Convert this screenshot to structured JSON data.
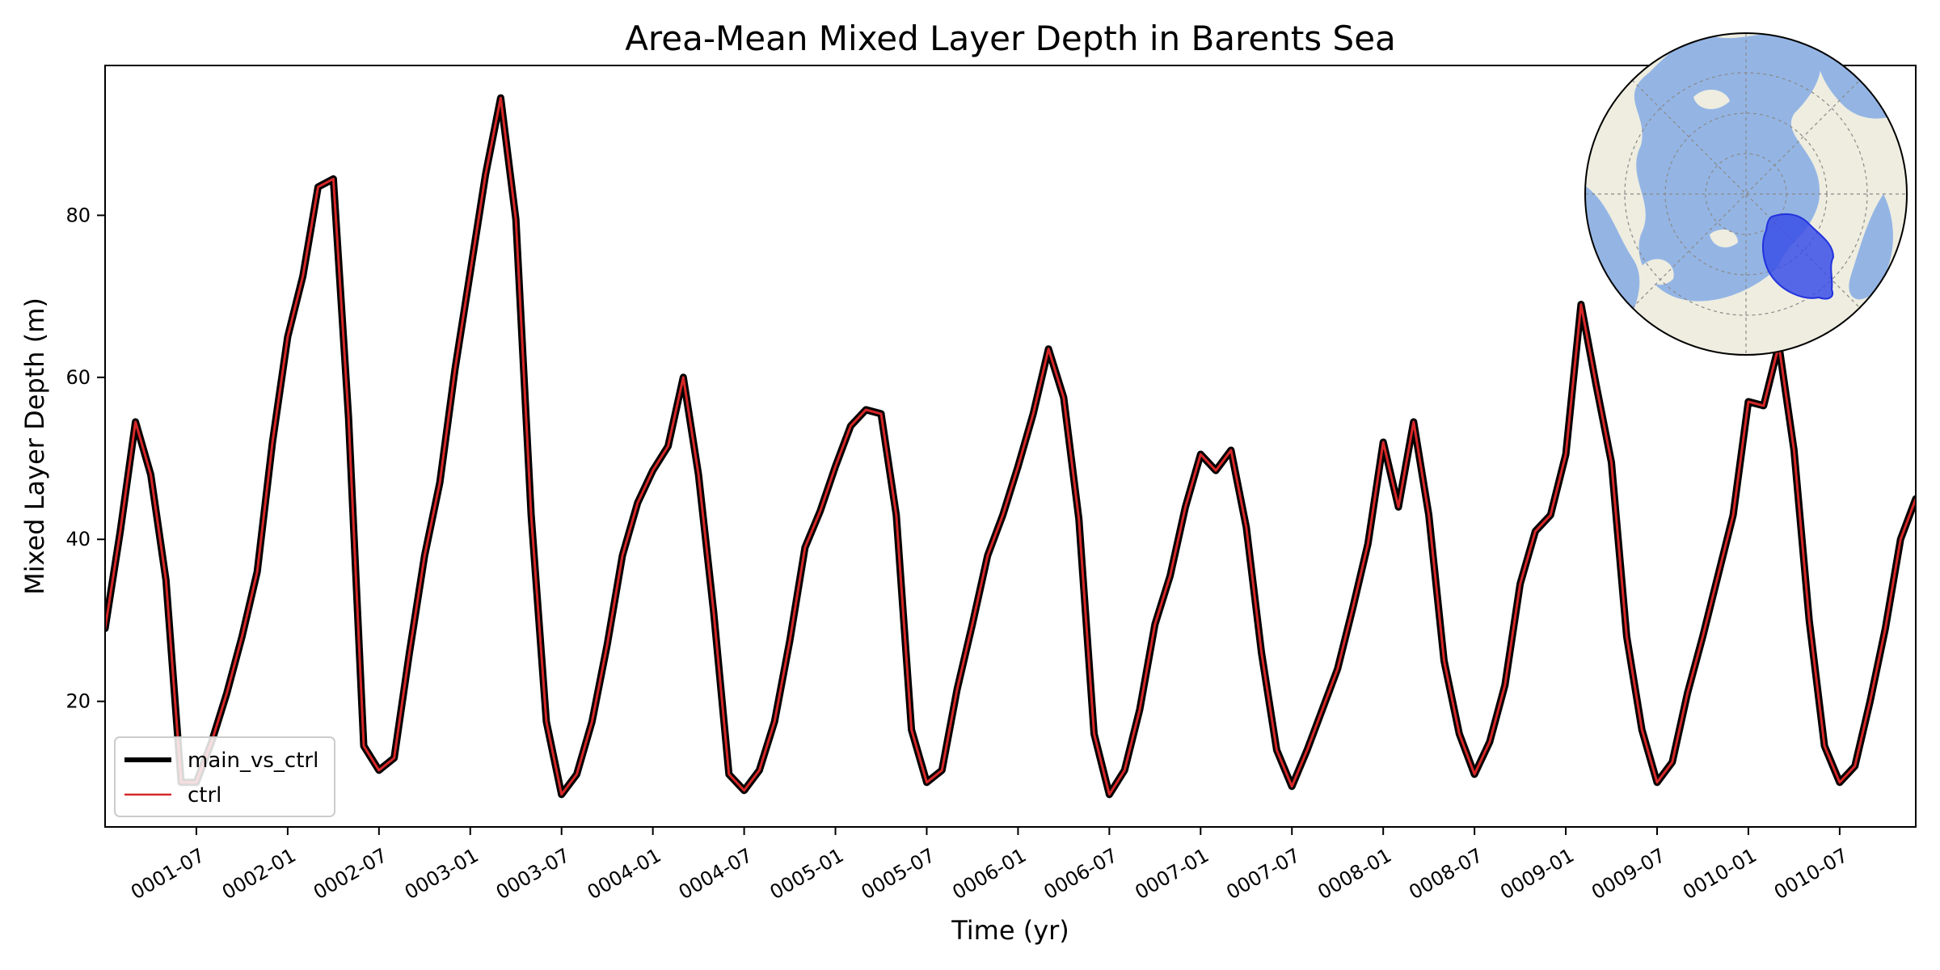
{
  "chart_data": {
    "type": "line",
    "title": "Area-Mean Mixed Layer Depth in Barents Sea",
    "xlabel": "Time (yr)",
    "ylabel": "Mixed Layer Depth (m)",
    "ylim": [
      4.5,
      98.5
    ],
    "yticks": [
      20,
      40,
      60,
      80
    ],
    "x_start_month_index": 0,
    "xticks": [
      {
        "label": "0001-07",
        "month_index": 6
      },
      {
        "label": "0002-01",
        "month_index": 12
      },
      {
        "label": "0002-07",
        "month_index": 18
      },
      {
        "label": "0003-01",
        "month_index": 24
      },
      {
        "label": "0003-07",
        "month_index": 30
      },
      {
        "label": "0004-01",
        "month_index": 36
      },
      {
        "label": "0004-07",
        "month_index": 42
      },
      {
        "label": "0005-01",
        "month_index": 48
      },
      {
        "label": "0005-07",
        "month_index": 54
      },
      {
        "label": "0006-01",
        "month_index": 60
      },
      {
        "label": "0006-07",
        "month_index": 66
      },
      {
        "label": "0007-01",
        "month_index": 72
      },
      {
        "label": "0007-07",
        "month_index": 78
      },
      {
        "label": "0008-01",
        "month_index": 84
      },
      {
        "label": "0008-07",
        "month_index": 90
      },
      {
        "label": "0009-01",
        "month_index": 96
      },
      {
        "label": "0009-07",
        "month_index": 102
      },
      {
        "label": "0010-01",
        "month_index": 108
      },
      {
        "label": "0010-07",
        "month_index": 114
      }
    ],
    "xlim_month_index": [
      0,
      119
    ],
    "series": [
      {
        "name": "main_vs_ctrl",
        "color": "#000000",
        "values": [
          29,
          41,
          54.5,
          48,
          35,
          10,
          10,
          15,
          21,
          28,
          36,
          52,
          65,
          72.5,
          83.5,
          84.5,
          55,
          14.5,
          11.5,
          13,
          26,
          38,
          47,
          61,
          73,
          85,
          94.5,
          79.5,
          43,
          17.5,
          8.5,
          11,
          17.5,
          27,
          38,
          44.5,
          48.5,
          51.5,
          60,
          48,
          31,
          11,
          9,
          11.5,
          17.5,
          27.5,
          39,
          43.5,
          49,
          54,
          56,
          55.5,
          43,
          16.5,
          10,
          11.5,
          21.5,
          29.5,
          38,
          43,
          49,
          55.5,
          63.5,
          57.5,
          42.5,
          16,
          8.5,
          11.5,
          19,
          29.5,
          35.5,
          44,
          50.5,
          48.5,
          51,
          41.5,
          26,
          14,
          9.5,
          14,
          19,
          24,
          31.5,
          39.5,
          52,
          44,
          54.5,
          43,
          25,
          16,
          11,
          15,
          22,
          34.5,
          41,
          43,
          50.5,
          69,
          59,
          49.5,
          28,
          16.5,
          10,
          12.5,
          21,
          28,
          35.5,
          43,
          57,
          56.5,
          64,
          51,
          30,
          14.5,
          10,
          12,
          20,
          29,
          40,
          45
        ]
      },
      {
        "name": "ctrl",
        "color": "#d62728",
        "values": [
          29,
          41,
          54.5,
          48,
          35,
          10,
          10,
          15,
          21,
          28,
          36,
          52,
          65,
          72.5,
          83.5,
          84.5,
          55,
          14.5,
          11.5,
          13,
          26,
          38,
          47,
          61,
          73,
          85,
          94.5,
          79.5,
          43,
          17.5,
          8.5,
          11,
          17.5,
          27,
          38,
          44.5,
          48.5,
          51.5,
          60,
          48,
          31,
          11,
          9,
          11.5,
          17.5,
          27.5,
          39,
          43.5,
          49,
          54,
          56,
          55.5,
          43,
          16.5,
          10,
          11.5,
          21.5,
          29.5,
          38,
          43,
          49,
          55.5,
          63.5,
          57.5,
          42.5,
          16,
          8.5,
          11.5,
          19,
          29.5,
          35.5,
          44,
          50.5,
          48.5,
          51,
          41.5,
          26,
          14,
          9.5,
          14,
          19,
          24,
          31.5,
          39.5,
          52,
          44,
          54.5,
          43,
          25,
          16,
          11,
          15,
          22,
          34.5,
          41,
          43,
          50.5,
          69,
          59,
          49.5,
          28,
          16.5,
          10,
          12.5,
          21,
          28,
          35.5,
          43,
          57,
          56.5,
          64,
          51,
          30,
          14.5,
          10,
          12,
          20,
          29,
          40,
          45
        ]
      }
    ],
    "legend": {
      "position": "lower-left",
      "entries": [
        "main_vs_ctrl",
        "ctrl"
      ]
    },
    "inset_map": {
      "description_icon": "north-polar-map-icon",
      "highlight_color": "#3a4fe6",
      "ocean_color": "#94b5e4",
      "land_color": "#eeede0"
    }
  }
}
